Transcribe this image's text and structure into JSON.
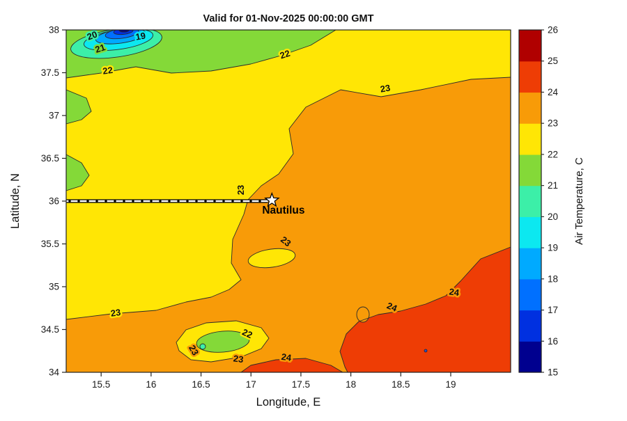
{
  "figure": {
    "title": "Valid for 01-Nov-2025 00:00:00 GMT",
    "xlabel": "Longitude, E",
    "ylabel": "Latitude, N",
    "colorbar_label": "Air Temperature, C"
  },
  "chart_data": {
    "type": "heatmap",
    "subtype": "filled-contour-map",
    "title": "Valid for 01-Nov-2025 00:00:00 GMT",
    "xlabel": "Longitude, E",
    "ylabel": "Latitude, N",
    "xlim": [
      15.15,
      19.6
    ],
    "ylim": [
      34,
      38
    ],
    "xticks": [
      "15.5",
      "16",
      "16.5",
      "17",
      "17.5",
      "18",
      "18.5",
      "19"
    ],
    "xtick_values": [
      15.5,
      16,
      16.5,
      17,
      17.5,
      18,
      18.5,
      19
    ],
    "yticks": [
      "34",
      "34.5",
      "35",
      "35.5",
      "36",
      "36.5",
      "37",
      "37.5",
      "38"
    ],
    "ytick_values": [
      34,
      34.5,
      35,
      35.5,
      36,
      36.5,
      37,
      37.5,
      38
    ],
    "grid": false,
    "colorbar": {
      "label": "Air Temperature, C",
      "min": 15,
      "max": 26,
      "ticks": [
        "15",
        "16",
        "17",
        "18",
        "19",
        "20",
        "21",
        "22",
        "23",
        "24",
        "25",
        "26"
      ],
      "band_colors": [
        "#00008F",
        "#0030E0",
        "#0070FF",
        "#00AAFF",
        "#0CE8F0",
        "#3CEFA8",
        "#84D938",
        "#FFE605",
        "#F89B08",
        "#EE3D05",
        "#B00000"
      ]
    },
    "contour_levels_labeled": [
      19,
      20,
      21,
      22,
      23,
      24
    ],
    "contour_labels": [
      {
        "value": "20",
        "lon": 15.42,
        "lat": 37.9,
        "rot": -20,
        "halo": "#3CEFA8"
      },
      {
        "value": "21",
        "lon": 15.5,
        "lat": 37.75,
        "rot": -18,
        "halo": "#84D938"
      },
      {
        "value": "19",
        "lon": 15.9,
        "lat": 37.89,
        "rot": -10,
        "halo": "#0CE8F0"
      },
      {
        "value": "22",
        "lon": 15.57,
        "lat": 37.49,
        "rot": -8,
        "halo": "#FFE605"
      },
      {
        "value": "22",
        "lon": 17.35,
        "lat": 37.68,
        "rot": -18,
        "halo": "#FFE605"
      },
      {
        "value": "23",
        "lon": 18.35,
        "lat": 37.28,
        "rot": -10,
        "halo": "#FFE605"
      },
      {
        "value": "23",
        "lon": 16.93,
        "lat": 36.13,
        "rot": -90,
        "halo": "#FFE605"
      },
      {
        "value": "23",
        "lon": 17.33,
        "lat": 35.5,
        "rot": 38,
        "halo": "#F89B08"
      },
      {
        "value": "23",
        "lon": 15.65,
        "lat": 34.66,
        "rot": -8,
        "halo": "#FFE605"
      },
      {
        "value": "23",
        "lon": 16.4,
        "lat": 34.24,
        "rot": 60,
        "halo": "#F89B08"
      },
      {
        "value": "22",
        "lon": 16.95,
        "lat": 34.42,
        "rot": 25,
        "halo": "#FFE605"
      },
      {
        "value": "23",
        "lon": 16.87,
        "lat": 34.12,
        "rot": 8,
        "halo": "#F89B08"
      },
      {
        "value": "24",
        "lon": 17.35,
        "lat": 34.14,
        "rot": 8,
        "halo": "#F89B08"
      },
      {
        "value": "24",
        "lon": 18.4,
        "lat": 34.73,
        "rot": 22,
        "halo": "#F89B08"
      },
      {
        "value": "24",
        "lon": 19.03,
        "lat": 34.9,
        "rot": 8,
        "halo": "#F89B08"
      }
    ],
    "marker": {
      "label": "Nautilus",
      "lon": 17.21,
      "lat": 36.01,
      "symbol": "star"
    },
    "track": {
      "lat": 36.0,
      "lon_start": 15.15,
      "lon_end": 17.17
    }
  }
}
